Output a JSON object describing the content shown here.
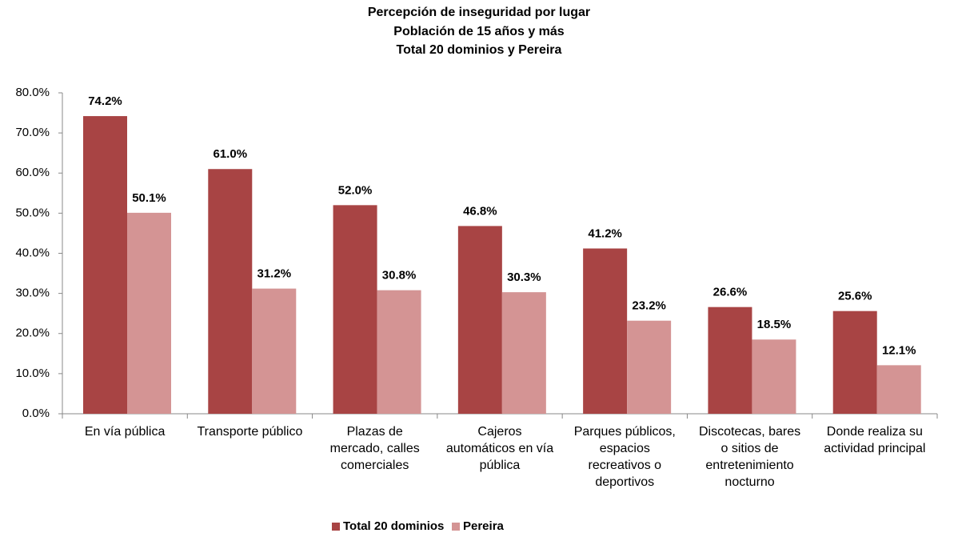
{
  "chart_data": {
    "type": "bar",
    "title": "Percepción de inseguridad por lugar",
    "subtitle": [
      "Población de 15 años y más",
      "Total 20 dominios y Pereira"
    ],
    "categories": [
      "En vía pública",
      "Transporte público",
      "Plazas de mercado, calles comerciales",
      "Cajeros automáticos en vía pública",
      "Parques públicos, espacios recreativos o deportivos",
      "Discotecas, bares o sitios de entretenimiento nocturno",
      "Donde realiza su actividad principal"
    ],
    "series": [
      {
        "name": "Total 20 dominios",
        "color": "#a84444",
        "values": [
          74.2,
          61.0,
          52.0,
          46.8,
          41.2,
          26.6,
          25.6
        ],
        "value_labels": [
          "74.2%",
          "61.0%",
          "52.0%",
          "46.8%",
          "41.2%",
          "26.6%",
          "25.6%"
        ]
      },
      {
        "name": "Pereira",
        "color": "#d49494",
        "values": [
          50.1,
          31.2,
          30.8,
          30.3,
          23.2,
          18.5,
          12.1
        ],
        "value_labels": [
          "50.1%",
          "31.2%",
          "30.8%",
          "30.3%",
          "23.2%",
          "18.5%",
          "12.1%"
        ]
      }
    ],
    "ylim": [
      0,
      80
    ],
    "yticks": [
      {
        "value": 0,
        "label": "0.0%"
      },
      {
        "value": 10,
        "label": "10.0%"
      },
      {
        "value": 20,
        "label": "20.0%"
      },
      {
        "value": 30,
        "label": "30.0%"
      },
      {
        "value": 40,
        "label": "40.0%"
      },
      {
        "value": 50,
        "label": "50.0%"
      },
      {
        "value": 60,
        "label": "60.0%"
      },
      {
        "value": 70,
        "label": "70.0%"
      },
      {
        "value": 80,
        "label": "80.0%"
      }
    ],
    "legend": "bottom"
  }
}
